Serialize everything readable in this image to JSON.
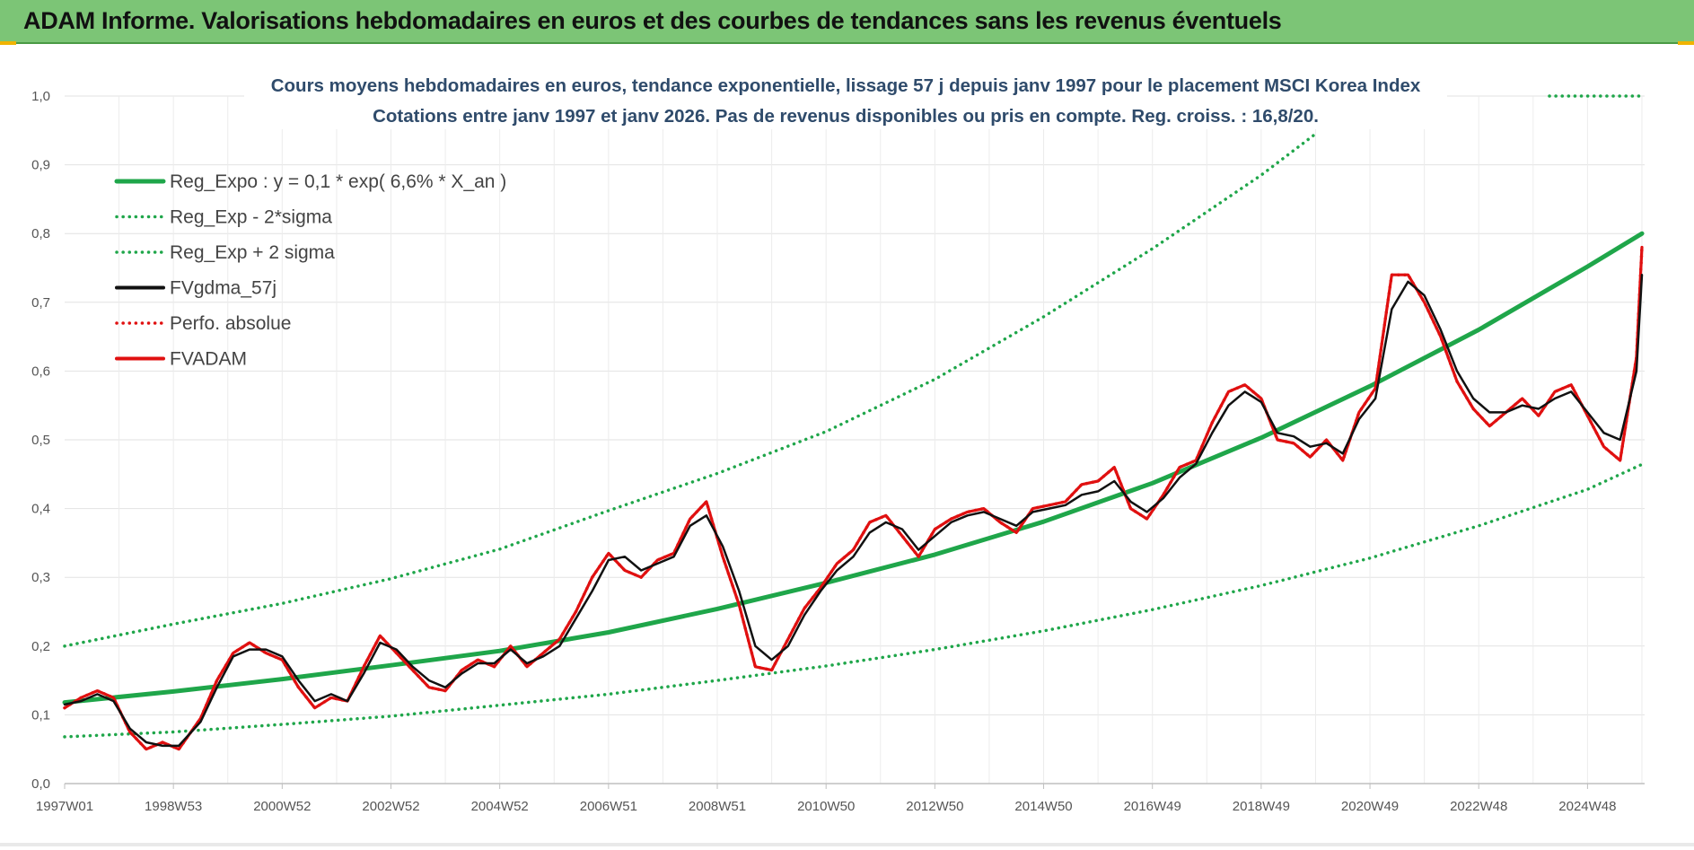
{
  "page": {
    "banner_title": "ADAM Informe. Valorisations hebdomadaires en euros et des courbes de tendances sans les revenus éventuels"
  },
  "chart_data": {
    "type": "line",
    "title": "Cours moyens hebdomadaires en euros, tendance exponentielle, lissage 57 j depuis janv 1997 pour le placement MSCI Korea Index",
    "subtitle": "Cotations entre janv 1997 et janv 2026. Pas de revenus disponibles ou pris en compte. Reg. croiss. : 16,8/20.",
    "xlabel": "",
    "ylabel": "",
    "x_unit": "year",
    "xlim": [
      1997.0,
      2026.05
    ],
    "ylim": [
      0,
      1.0
    ],
    "y_ticks": [
      "0,0",
      "0,1",
      "0,2",
      "0,3",
      "0,4",
      "0,5",
      "0,6",
      "0,7",
      "0,8",
      "0,9",
      "1,0"
    ],
    "x_ticks": [
      {
        "label": "1997W01",
        "x": 1997.0
      },
      {
        "label": "1998W53",
        "x": 1999.0
      },
      {
        "label": "2000W52",
        "x": 2001.0
      },
      {
        "label": "2002W52",
        "x": 2003.0
      },
      {
        "label": "2004W52",
        "x": 2005.0
      },
      {
        "label": "2006W51",
        "x": 2007.0
      },
      {
        "label": "2008W51",
        "x": 2009.0
      },
      {
        "label": "2010W50",
        "x": 2011.0
      },
      {
        "label": "2012W50",
        "x": 2013.0
      },
      {
        "label": "2014W50",
        "x": 2015.0
      },
      {
        "label": "2016W49",
        "x": 2017.0
      },
      {
        "label": "2018W49",
        "x": 2019.0
      },
      {
        "label": "2020W49",
        "x": 2021.0
      },
      {
        "label": "2022W48",
        "x": 2023.0
      },
      {
        "label": "2024W48",
        "x": 2025.0
      }
    ],
    "grid": true,
    "legend_position": "top-left",
    "series": [
      {
        "name": "Reg_Expo : y = 0,1 * exp( 6,6% *  X_an )",
        "color": "#1fa64a",
        "style": "solid",
        "x": [
          1997,
          1999,
          2001,
          2003,
          2005,
          2007,
          2009,
          2011,
          2013,
          2015,
          2017,
          2019,
          2021,
          2023,
          2025,
          2026
        ],
        "y": [
          0.118,
          0.134,
          0.152,
          0.172,
          0.193,
          0.22,
          0.254,
          0.292,
          0.333,
          0.381,
          0.437,
          0.503,
          0.578,
          0.66,
          0.752,
          0.8
        ]
      },
      {
        "name": "Reg_Exp - 2*sigma",
        "color": "#1fa64a",
        "style": "dotted",
        "x": [
          1997,
          1999,
          2001,
          2003,
          2005,
          2007,
          2009,
          2011,
          2013,
          2015,
          2017,
          2019,
          2021,
          2023,
          2025,
          2026.05
        ],
        "y": [
          0.068,
          0.075,
          0.086,
          0.098,
          0.114,
          0.13,
          0.15,
          0.171,
          0.195,
          0.222,
          0.253,
          0.288,
          0.328,
          0.375,
          0.428,
          0.466
        ]
      },
      {
        "name": "Reg_Exp + 2 sigma",
        "color": "#1fa64a",
        "style": "dotted",
        "x": [
          1997,
          1999,
          2001,
          2003,
          2005,
          2007,
          2009,
          2011,
          2013,
          2015,
          2017,
          2019,
          2020.0
        ],
        "y": [
          0.2,
          0.232,
          0.262,
          0.298,
          0.341,
          0.397,
          0.451,
          0.512,
          0.588,
          0.679,
          0.778,
          0.885,
          0.945
        ]
      },
      {
        "name": "FVgdma_57j",
        "color": "#111111",
        "style": "solid",
        "x": [
          1997.0,
          1997.3,
          1997.6,
          1997.9,
          1998.2,
          1998.5,
          1998.8,
          1999.1,
          1999.5,
          1999.8,
          2000.1,
          2000.4,
          2000.7,
          2001.0,
          2001.3,
          2001.6,
          2001.9,
          2002.2,
          2002.5,
          2002.8,
          2003.1,
          2003.4,
          2003.7,
          2004.0,
          2004.3,
          2004.6,
          2004.9,
          2005.2,
          2005.5,
          2005.8,
          2006.1,
          2006.4,
          2006.7,
          2007.0,
          2007.3,
          2007.6,
          2007.9,
          2008.2,
          2008.5,
          2008.8,
          2009.1,
          2009.4,
          2009.7,
          2010.0,
          2010.3,
          2010.6,
          2010.9,
          2011.2,
          2011.5,
          2011.8,
          2012.1,
          2012.4,
          2012.7,
          2013.0,
          2013.3,
          2013.6,
          2013.9,
          2014.2,
          2014.5,
          2014.8,
          2015.1,
          2015.4,
          2015.7,
          2016.0,
          2016.3,
          2016.6,
          2016.9,
          2017.2,
          2017.5,
          2017.8,
          2018.1,
          2018.4,
          2018.7,
          2019.0,
          2019.3,
          2019.6,
          2019.9,
          2020.2,
          2020.5,
          2020.8,
          2021.1,
          2021.4,
          2021.7,
          2022.0,
          2022.3,
          2022.6,
          2022.9,
          2023.2,
          2023.5,
          2023.8,
          2024.1,
          2024.4,
          2024.7,
          2025.0,
          2025.3,
          2025.6,
          2025.9,
          2026.0
        ],
        "y": [
          0.115,
          0.12,
          0.13,
          0.12,
          0.08,
          0.06,
          0.055,
          0.055,
          0.09,
          0.14,
          0.185,
          0.195,
          0.195,
          0.185,
          0.15,
          0.12,
          0.13,
          0.12,
          0.16,
          0.205,
          0.195,
          0.17,
          0.15,
          0.14,
          0.16,
          0.175,
          0.175,
          0.195,
          0.175,
          0.185,
          0.2,
          0.24,
          0.28,
          0.325,
          0.33,
          0.31,
          0.32,
          0.33,
          0.375,
          0.39,
          0.345,
          0.28,
          0.2,
          0.18,
          0.2,
          0.245,
          0.28,
          0.31,
          0.33,
          0.365,
          0.38,
          0.37,
          0.34,
          0.36,
          0.38,
          0.39,
          0.395,
          0.385,
          0.375,
          0.395,
          0.4,
          0.405,
          0.42,
          0.425,
          0.44,
          0.41,
          0.395,
          0.415,
          0.445,
          0.465,
          0.51,
          0.55,
          0.57,
          0.555,
          0.51,
          0.505,
          0.49,
          0.495,
          0.48,
          0.53,
          0.56,
          0.69,
          0.73,
          0.71,
          0.66,
          0.6,
          0.56,
          0.54,
          0.54,
          0.55,
          0.545,
          0.56,
          0.57,
          0.54,
          0.51,
          0.5,
          0.6,
          0.74
        ]
      },
      {
        "name": "Perfo. absolue",
        "color": "#e01010",
        "style": "dotted",
        "x": [
          1997.0,
          1997.3,
          1997.6,
          1997.9,
          1998.2,
          1998.5,
          1998.8,
          1999.1,
          1999.5,
          1999.8,
          2000.1,
          2000.4,
          2000.7,
          2001.0,
          2001.3,
          2001.6,
          2001.9,
          2002.2,
          2002.5,
          2002.8,
          2003.1,
          2003.4,
          2003.7,
          2004.0,
          2004.3,
          2004.6,
          2004.9,
          2005.2,
          2005.5,
          2005.8,
          2006.1,
          2006.4,
          2006.7,
          2007.0,
          2007.3,
          2007.6,
          2007.9,
          2008.2,
          2008.5,
          2008.8,
          2009.1,
          2009.4,
          2009.7,
          2010.0,
          2010.3,
          2010.6,
          2010.9,
          2011.2,
          2011.5,
          2011.8,
          2012.1,
          2012.4,
          2012.7,
          2013.0,
          2013.3,
          2013.6,
          2013.9,
          2014.2,
          2014.5,
          2014.8,
          2015.1,
          2015.4,
          2015.7,
          2016.0,
          2016.3,
          2016.6,
          2016.9,
          2017.2,
          2017.5,
          2017.8,
          2018.1,
          2018.4,
          2018.7,
          2019.0,
          2019.3,
          2019.6,
          2019.9,
          2020.2,
          2020.5,
          2020.8,
          2021.1,
          2021.4,
          2021.7,
          2022.0,
          2022.3,
          2022.6,
          2022.9,
          2023.2,
          2023.5,
          2023.8,
          2024.1,
          2024.4,
          2024.7,
          2025.0,
          2025.3,
          2025.6,
          2025.9,
          2026.0
        ],
        "y": [
          0.11,
          0.125,
          0.135,
          0.125,
          0.075,
          0.05,
          0.06,
          0.05,
          0.095,
          0.15,
          0.19,
          0.205,
          0.19,
          0.18,
          0.14,
          0.11,
          0.125,
          0.12,
          0.17,
          0.215,
          0.19,
          0.165,
          0.14,
          0.135,
          0.165,
          0.18,
          0.17,
          0.2,
          0.17,
          0.19,
          0.21,
          0.25,
          0.3,
          0.335,
          0.31,
          0.3,
          0.325,
          0.335,
          0.385,
          0.41,
          0.33,
          0.26,
          0.17,
          0.165,
          0.21,
          0.255,
          0.285,
          0.32,
          0.34,
          0.38,
          0.39,
          0.36,
          0.33,
          0.37,
          0.385,
          0.395,
          0.4,
          0.38,
          0.365,
          0.4,
          0.405,
          0.41,
          0.435,
          0.44,
          0.46,
          0.4,
          0.385,
          0.42,
          0.46,
          0.47,
          0.525,
          0.57,
          0.58,
          0.56,
          0.5,
          0.495,
          0.475,
          0.5,
          0.47,
          0.54,
          0.575,
          0.74,
          0.74,
          0.7,
          0.65,
          0.585,
          0.545,
          0.52,
          0.54,
          0.56,
          0.535,
          0.57,
          0.58,
          0.535,
          0.49,
          0.47,
          0.62,
          0.78
        ]
      },
      {
        "name": "FVADAM",
        "color": "#e01010",
        "style": "solid",
        "x": [
          1997.0,
          1997.3,
          1997.6,
          1997.9,
          1998.2,
          1998.5,
          1998.8,
          1999.1,
          1999.5,
          1999.8,
          2000.1,
          2000.4,
          2000.7,
          2001.0,
          2001.3,
          2001.6,
          2001.9,
          2002.2,
          2002.5,
          2002.8,
          2003.1,
          2003.4,
          2003.7,
          2004.0,
          2004.3,
          2004.6,
          2004.9,
          2005.2,
          2005.5,
          2005.8,
          2006.1,
          2006.4,
          2006.7,
          2007.0,
          2007.3,
          2007.6,
          2007.9,
          2008.2,
          2008.5,
          2008.8,
          2009.1,
          2009.4,
          2009.7,
          2010.0,
          2010.3,
          2010.6,
          2010.9,
          2011.2,
          2011.5,
          2011.8,
          2012.1,
          2012.4,
          2012.7,
          2013.0,
          2013.3,
          2013.6,
          2013.9,
          2014.2,
          2014.5,
          2014.8,
          2015.1,
          2015.4,
          2015.7,
          2016.0,
          2016.3,
          2016.6,
          2016.9,
          2017.2,
          2017.5,
          2017.8,
          2018.1,
          2018.4,
          2018.7,
          2019.0,
          2019.3,
          2019.6,
          2019.9,
          2020.2,
          2020.5,
          2020.8,
          2021.1,
          2021.4,
          2021.7,
          2022.0,
          2022.3,
          2022.6,
          2022.9,
          2023.2,
          2023.5,
          2023.8,
          2024.1,
          2024.4,
          2024.7,
          2025.0,
          2025.3,
          2025.6,
          2025.9,
          2026.0
        ],
        "y": [
          0.11,
          0.125,
          0.135,
          0.125,
          0.075,
          0.05,
          0.06,
          0.05,
          0.095,
          0.15,
          0.19,
          0.205,
          0.19,
          0.18,
          0.14,
          0.11,
          0.125,
          0.12,
          0.17,
          0.215,
          0.19,
          0.165,
          0.14,
          0.135,
          0.165,
          0.18,
          0.17,
          0.2,
          0.17,
          0.19,
          0.21,
          0.25,
          0.3,
          0.335,
          0.31,
          0.3,
          0.325,
          0.335,
          0.385,
          0.41,
          0.33,
          0.26,
          0.17,
          0.165,
          0.21,
          0.255,
          0.285,
          0.32,
          0.34,
          0.38,
          0.39,
          0.36,
          0.33,
          0.37,
          0.385,
          0.395,
          0.4,
          0.38,
          0.365,
          0.4,
          0.405,
          0.41,
          0.435,
          0.44,
          0.46,
          0.4,
          0.385,
          0.42,
          0.46,
          0.47,
          0.525,
          0.57,
          0.58,
          0.56,
          0.5,
          0.495,
          0.475,
          0.5,
          0.47,
          0.54,
          0.575,
          0.74,
          0.74,
          0.7,
          0.65,
          0.585,
          0.545,
          0.52,
          0.54,
          0.56,
          0.535,
          0.57,
          0.58,
          0.535,
          0.49,
          0.47,
          0.62,
          0.78
        ]
      }
    ]
  }
}
